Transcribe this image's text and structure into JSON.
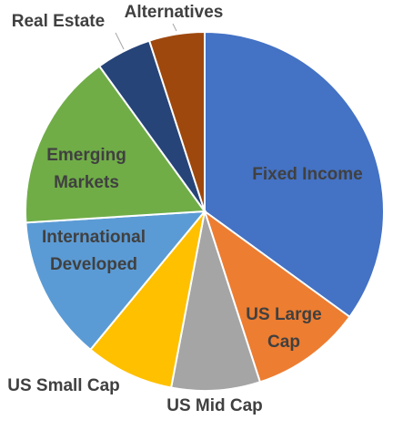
{
  "chart_data": {
    "type": "pie",
    "categories": [
      "Fixed Income",
      "US Large Cap",
      "US Mid Cap",
      "US Small Cap",
      "International Developed",
      "Emerging Markets",
      "Real Estate",
      "Alternatives"
    ],
    "values": [
      35,
      10,
      8,
      8,
      13,
      16,
      5,
      5
    ],
    "colors": [
      "#4472c4",
      "#ed7d31",
      "#a5a5a5",
      "#ffc000",
      "#5b9bd5",
      "#70ad47",
      "#264478",
      "#9e480e"
    ]
  }
}
